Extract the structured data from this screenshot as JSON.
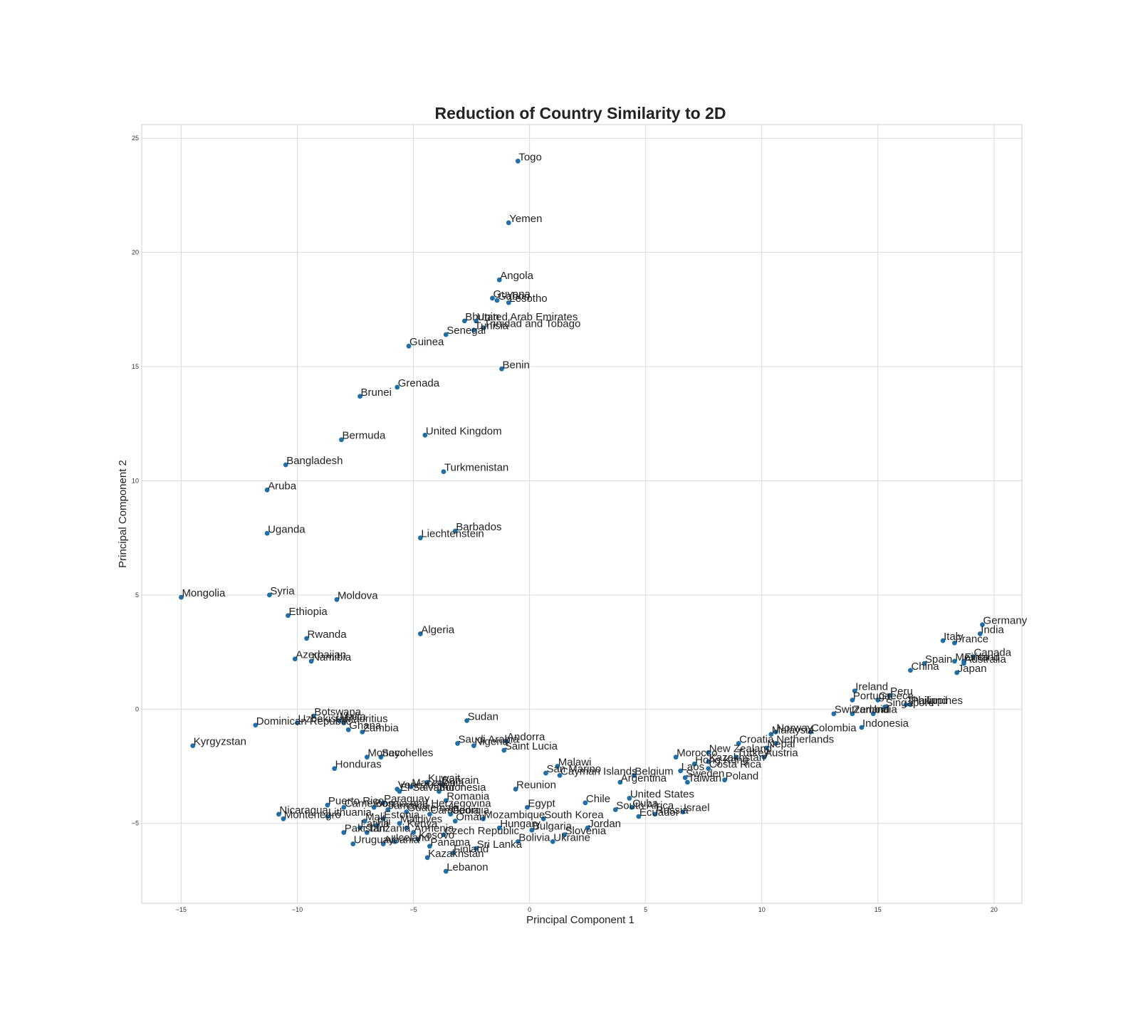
{
  "chart_data": {
    "type": "scatter",
    "title": "Reduction of Country Similarity to 2D",
    "xlabel": "Principal Component 1",
    "ylabel": "Principal Component 2",
    "xlim": [
      -16.7,
      21.2
    ],
    "ylim": [
      -8.5,
      25.6
    ],
    "xticks": [
      -15,
      -10,
      -5,
      0,
      5,
      10,
      15,
      20
    ],
    "yticks": [
      -5,
      0,
      5,
      10,
      15,
      20,
      25
    ],
    "xtick_labels": [
      "−15",
      "−10",
      "−5",
      "0",
      "5",
      "10",
      "15",
      "20"
    ],
    "ytick_labels": [
      "−5",
      "0",
      "5",
      "10",
      "15",
      "20",
      "25"
    ],
    "grid": true,
    "point_color": "#1f6fa8",
    "points": [
      {
        "label": "Togo",
        "x": -0.5,
        "y": 24.0
      },
      {
        "label": "Yemen",
        "x": -0.9,
        "y": 21.3
      },
      {
        "label": "Angola",
        "x": -1.3,
        "y": 18.8
      },
      {
        "label": "Guyana",
        "x": -1.6,
        "y": 18.0
      },
      {
        "label": "Gabon",
        "x": -1.4,
        "y": 17.9
      },
      {
        "label": "Lesotho",
        "x": -0.9,
        "y": 17.8
      },
      {
        "label": "Bhutan",
        "x": -2.8,
        "y": 17.0
      },
      {
        "label": "United Arab Emirates",
        "x": -2.3,
        "y": 17.0
      },
      {
        "label": "Trinidad and Tobago",
        "x": -2.0,
        "y": 16.7
      },
      {
        "label": "Tunisia",
        "x": -2.4,
        "y": 16.6
      },
      {
        "label": "Senegal",
        "x": -3.6,
        "y": 16.4
      },
      {
        "label": "Guinea",
        "x": -5.2,
        "y": 15.9
      },
      {
        "label": "Benin",
        "x": -1.2,
        "y": 14.9
      },
      {
        "label": "Grenada",
        "x": -5.7,
        "y": 14.1
      },
      {
        "label": "Brunei",
        "x": -7.3,
        "y": 13.7
      },
      {
        "label": "United Kingdom",
        "x": -4.5,
        "y": 12.0
      },
      {
        "label": "Bermuda",
        "x": -8.1,
        "y": 11.8
      },
      {
        "label": "Bangladesh",
        "x": -10.5,
        "y": 10.7
      },
      {
        "label": "Turkmenistan",
        "x": -3.7,
        "y": 10.4
      },
      {
        "label": "Aruba",
        "x": -11.3,
        "y": 9.6
      },
      {
        "label": "Uganda",
        "x": -11.3,
        "y": 7.7
      },
      {
        "label": "Barbados",
        "x": -3.2,
        "y": 7.8
      },
      {
        "label": "Liechtenstein",
        "x": -4.7,
        "y": 7.5
      },
      {
        "label": "Mongolia",
        "x": -15.0,
        "y": 4.9
      },
      {
        "label": "Syria",
        "x": -11.2,
        "y": 5.0
      },
      {
        "label": "Moldova",
        "x": -8.3,
        "y": 4.8
      },
      {
        "label": "Ethiopia",
        "x": -10.4,
        "y": 4.1
      },
      {
        "label": "Rwanda",
        "x": -9.6,
        "y": 3.1
      },
      {
        "label": "Algeria",
        "x": -4.7,
        "y": 3.3
      },
      {
        "label": "Azerbaijan",
        "x": -10.1,
        "y": 2.2
      },
      {
        "label": "Namibia",
        "x": -9.4,
        "y": 2.1
      },
      {
        "label": "Botswana",
        "x": -9.3,
        "y": -0.3
      },
      {
        "label": "Dominican Republic",
        "x": -11.8,
        "y": -0.7
      },
      {
        "label": "Uzbekistan",
        "x": -10.0,
        "y": -0.6
      },
      {
        "label": "Mauritius",
        "x": -8.0,
        "y": -0.6
      },
      {
        "label": "Malta",
        "x": -8.2,
        "y": -0.5
      },
      {
        "label": "Ghana",
        "x": -7.8,
        "y": -0.9
      },
      {
        "label": "Zambia",
        "x": -7.2,
        "y": -1.0
      },
      {
        "label": "Sudan",
        "x": -2.7,
        "y": -0.5
      },
      {
        "label": "Kyrgyzstan",
        "x": -14.5,
        "y": -1.6
      },
      {
        "label": "Andorra",
        "x": -1.0,
        "y": -1.4
      },
      {
        "label": "Saudi Arabia",
        "x": -3.1,
        "y": -1.5
      },
      {
        "label": "Nigeria",
        "x": -2.4,
        "y": -1.6
      },
      {
        "label": "Saint Lucia",
        "x": -1.1,
        "y": -1.8
      },
      {
        "label": "Monaco",
        "x": -7.0,
        "y": -2.1
      },
      {
        "label": "Seychelles",
        "x": -6.4,
        "y": -2.1
      },
      {
        "label": "Honduras",
        "x": -8.4,
        "y": -2.6
      },
      {
        "label": "Malawi",
        "x": 1.2,
        "y": -2.5
      },
      {
        "label": "San Marino",
        "x": 0.7,
        "y": -2.8
      },
      {
        "label": "Cayman Islands",
        "x": 1.3,
        "y": -2.9
      },
      {
        "label": "Argentina",
        "x": 3.9,
        "y": -3.2
      },
      {
        "label": "Belgium",
        "x": 4.5,
        "y": -2.9
      },
      {
        "label": "Kuwait",
        "x": -4.4,
        "y": -3.2
      },
      {
        "label": "Bahrain",
        "x": -3.8,
        "y": -3.3
      },
      {
        "label": "Venezuela",
        "x": -5.7,
        "y": -3.5
      },
      {
        "label": "Macedonia",
        "x": -5.1,
        "y": -3.4
      },
      {
        "label": "El Salvador",
        "x": -5.6,
        "y": -3.6
      },
      {
        "label": "Indonesia",
        "x": -3.9,
        "y": -3.6
      },
      {
        "label": "Reunion",
        "x": -0.6,
        "y": -3.5
      },
      {
        "label": "Romania",
        "x": -3.6,
        "y": -4.0
      },
      {
        "label": "Paraguay",
        "x": -6.3,
        "y": -4.1
      },
      {
        "label": "Puerto Rico",
        "x": -8.7,
        "y": -4.2
      },
      {
        "label": "Cameroon",
        "x": -8.0,
        "y": -4.3
      },
      {
        "label": "Bosnia and Herzegovina",
        "x": -6.7,
        "y": -4.3
      },
      {
        "label": "Jamaica",
        "x": -6.1,
        "y": -4.4
      },
      {
        "label": "Guatemala",
        "x": -5.3,
        "y": -4.5
      },
      {
        "label": "Chile",
        "x": 2.4,
        "y": -4.1
      },
      {
        "label": "Egypt",
        "x": -0.1,
        "y": -4.3
      },
      {
        "label": "United States",
        "x": 4.3,
        "y": -3.9
      },
      {
        "label": "South Africa",
        "x": 3.7,
        "y": -4.4
      },
      {
        "label": "Cuba",
        "x": 4.4,
        "y": -4.3
      },
      {
        "label": "Ecuador",
        "x": 4.7,
        "y": -4.7
      },
      {
        "label": "Russia",
        "x": 5.4,
        "y": -4.6
      },
      {
        "label": "Israel",
        "x": 6.6,
        "y": -4.5
      },
      {
        "label": "Nicaragua",
        "x": -10.8,
        "y": -4.6
      },
      {
        "label": "Montenegro",
        "x": -10.6,
        "y": -4.8
      },
      {
        "label": "Lithuania",
        "x": -8.7,
        "y": -4.7
      },
      {
        "label": "Cambodia",
        "x": -4.3,
        "y": -4.6
      },
      {
        "label": "Georgia",
        "x": -3.4,
        "y": -4.6
      },
      {
        "label": "Oman",
        "x": -3.2,
        "y": -4.9
      },
      {
        "label": "Mozambique",
        "x": -2.0,
        "y": -4.8
      },
      {
        "label": "South Korea",
        "x": 0.6,
        "y": -4.8
      },
      {
        "label": "Mali",
        "x": -7.1,
        "y": -4.9
      },
      {
        "label": "Estonia",
        "x": -6.3,
        "y": -4.8
      },
      {
        "label": "Fiji",
        "x": -6.6,
        "y": -5.1
      },
      {
        "label": "Maldives",
        "x": -5.6,
        "y": -5.0
      },
      {
        "label": "Latvia",
        "x": -7.3,
        "y": -5.2
      },
      {
        "label": "Kenya",
        "x": -5.3,
        "y": -5.2
      },
      {
        "label": "Pakistan",
        "x": -8.0,
        "y": -5.4
      },
      {
        "label": "Tanzania",
        "x": -7.0,
        "y": -5.4
      },
      {
        "label": "Armenia",
        "x": -5.0,
        "y": -5.4
      },
      {
        "label": "Czech Republic",
        "x": -3.7,
        "y": -5.5
      },
      {
        "label": "Hungary",
        "x": -1.3,
        "y": -5.2
      },
      {
        "label": "Bulgaria",
        "x": 0.1,
        "y": -5.3
      },
      {
        "label": "Jordan",
        "x": 2.5,
        "y": -5.2
      },
      {
        "label": "Slovenia",
        "x": 1.5,
        "y": -5.5
      },
      {
        "label": "Bolivia",
        "x": -0.5,
        "y": -5.8
      },
      {
        "label": "Ukraine",
        "x": 1.0,
        "y": -5.8
      },
      {
        "label": "Kosovo",
        "x": -4.8,
        "y": -5.7
      },
      {
        "label": "Uruguay",
        "x": -7.6,
        "y": -5.9
      },
      {
        "label": "Albania",
        "x": -6.3,
        "y": -5.9
      },
      {
        "label": "Iceland",
        "x": -5.8,
        "y": -5.8
      },
      {
        "label": "Panama",
        "x": -4.3,
        "y": -6.0
      },
      {
        "label": "Sri Lanka",
        "x": -2.3,
        "y": -6.1
      },
      {
        "label": "Finland",
        "x": -3.3,
        "y": -6.3
      },
      {
        "label": "Kazakhstan",
        "x": -4.4,
        "y": -6.5
      },
      {
        "label": "Lebanon",
        "x": -3.6,
        "y": -7.1
      },
      {
        "label": "Morocco",
        "x": 6.3,
        "y": -2.1
      },
      {
        "label": "Laos",
        "x": 6.5,
        "y": -2.7
      },
      {
        "label": "Hong Kong",
        "x": 7.1,
        "y": -2.4
      },
      {
        "label": "Sweden",
        "x": 6.7,
        "y": -3.0
      },
      {
        "label": "Taiwan",
        "x": 6.8,
        "y": -3.2
      },
      {
        "label": "New Zealand",
        "x": 7.7,
        "y": -1.9
      },
      {
        "label": "Kazakhstan",
        "x": 7.7,
        "y": -2.3
      },
      {
        "label": "Costa Rica",
        "x": 7.7,
        "y": -2.6
      },
      {
        "label": "Poland",
        "x": 8.4,
        "y": -3.1
      },
      {
        "label": "Croatia",
        "x": 9.0,
        "y": -1.5
      },
      {
        "label": "Turkey",
        "x": 8.9,
        "y": -2.1
      },
      {
        "label": "Nepal",
        "x": 10.2,
        "y": -1.7
      },
      {
        "label": "Austria",
        "x": 10.1,
        "y": -2.1
      },
      {
        "label": "Netherlands",
        "x": 10.6,
        "y": -1.5
      },
      {
        "label": "Malaysia",
        "x": 10.4,
        "y": -1.1
      },
      {
        "label": "Norway",
        "x": 10.6,
        "y": -1.0
      },
      {
        "label": "Colombia",
        "x": 12.1,
        "y": -1.0
      },
      {
        "label": "Switzerland",
        "x": 13.1,
        "y": -0.2
      },
      {
        "label": "Zambia",
        "x": 13.9,
        "y": -0.2
      },
      {
        "label": "India",
        "x": 14.8,
        "y": -0.2
      },
      {
        "label": "Indonesia",
        "x": 14.3,
        "y": -0.8
      },
      {
        "label": "Ireland",
        "x": 14.0,
        "y": 0.8
      },
      {
        "label": "Portugal",
        "x": 13.9,
        "y": 0.4
      },
      {
        "label": "Peru",
        "x": 15.5,
        "y": 0.6
      },
      {
        "label": "Greece",
        "x": 15.0,
        "y": 0.4
      },
      {
        "label": "Singapore",
        "x": 15.3,
        "y": 0.1
      },
      {
        "label": "Philippines",
        "x": 16.4,
        "y": 0.2
      },
      {
        "label": "Thailand",
        "x": 16.2,
        "y": 0.2
      },
      {
        "label": "China",
        "x": 16.4,
        "y": 1.7
      },
      {
        "label": "Spain",
        "x": 17.0,
        "y": 2.0
      },
      {
        "label": "Mexico",
        "x": 18.3,
        "y": 2.1
      },
      {
        "label": "Australia",
        "x": 18.7,
        "y": 2.0
      },
      {
        "label": "Canada",
        "x": 19.1,
        "y": 2.3
      },
      {
        "label": "Finland",
        "x": 18.7,
        "y": 2.1
      },
      {
        "label": "Japan",
        "x": 18.4,
        "y": 1.6
      },
      {
        "label": "Italy",
        "x": 17.8,
        "y": 3.0
      },
      {
        "label": "France",
        "x": 18.3,
        "y": 2.9
      },
      {
        "label": "India",
        "x": 19.4,
        "y": 3.3
      },
      {
        "label": "Germany",
        "x": 19.5,
        "y": 3.7
      }
    ]
  }
}
